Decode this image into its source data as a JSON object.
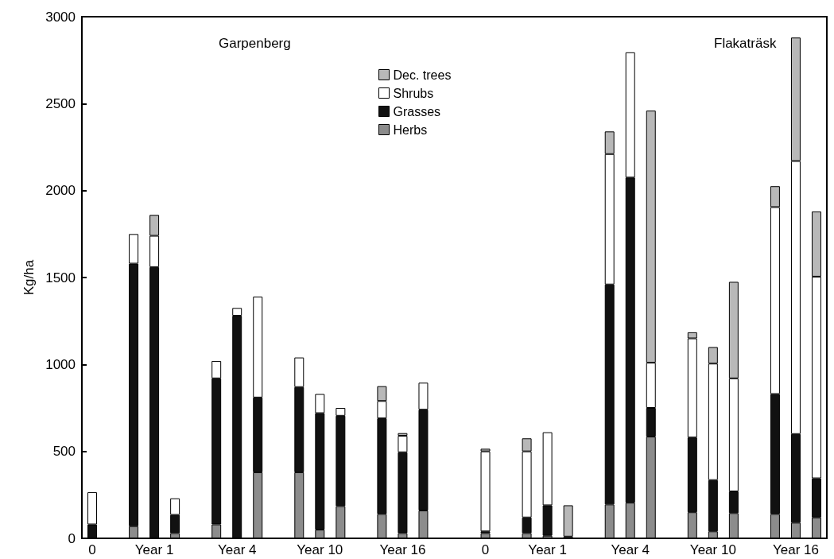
{
  "chart_data": {
    "type": "bar",
    "stacked": true,
    "ylabel": "Kg/ha",
    "categories": [
      "0",
      null,
      null,
      "Year 1",
      null,
      null,
      null,
      "Year 4",
      null,
      null,
      null,
      "Year 10",
      null,
      null,
      null,
      "Year 16",
      null,
      null,
      null,
      "0",
      null,
      null,
      "Year 1",
      null,
      null,
      null,
      "Year 4",
      null,
      null,
      null,
      "Year 10",
      null,
      null,
      null,
      "Year 16",
      null
    ],
    "series": [
      {
        "name": "Herbs",
        "color": "#8c8c8c",
        "values": [
          null,
          null,
          70,
          null,
          30,
          null,
          80,
          null,
          380,
          null,
          380,
          50,
          185,
          null,
          140,
          30,
          160,
          null,
          null,
          30,
          null,
          30,
          15,
          10,
          null,
          195,
          205,
          585,
          null,
          150,
          40,
          145,
          null,
          140,
          90,
          120
        ]
      },
      {
        "name": "Grasses",
        "color": "#111111",
        "values": [
          80,
          null,
          1510,
          1560,
          105,
          null,
          840,
          1280,
          430,
          null,
          490,
          670,
          520,
          null,
          550,
          465,
          580,
          null,
          null,
          10,
          null,
          90,
          175,
          null,
          null,
          1265,
          1870,
          165,
          null,
          430,
          295,
          125,
          null,
          690,
          510,
          225
        ]
      },
      {
        "name": "Shrubs",
        "color": "#ffffff",
        "values": [
          185,
          null,
          170,
          180,
          95,
          null,
          100,
          45,
          580,
          null,
          170,
          110,
          45,
          null,
          100,
          95,
          155,
          null,
          null,
          460,
          null,
          380,
          420,
          null,
          null,
          750,
          720,
          260,
          null,
          570,
          670,
          650,
          null,
          1075,
          1570,
          1160
        ]
      },
      {
        "name": "Dec. trees",
        "color": "#b8b8b8",
        "values": [
          null,
          null,
          null,
          120,
          null,
          null,
          null,
          null,
          null,
          null,
          null,
          null,
          null,
          null,
          85,
          15,
          null,
          null,
          null,
          15,
          null,
          75,
          null,
          180,
          null,
          130,
          null,
          1450,
          null,
          35,
          95,
          555,
          null,
          120,
          710,
          375
        ]
      }
    ],
    "ylim": [
      0,
      3000
    ],
    "yticks": [
      0,
      500,
      1000,
      1500,
      2000,
      2500,
      3000
    ],
    "grid": false,
    "legend": "top",
    "annotations": [
      "Garpenberg",
      "Flakaträsk"
    ]
  }
}
